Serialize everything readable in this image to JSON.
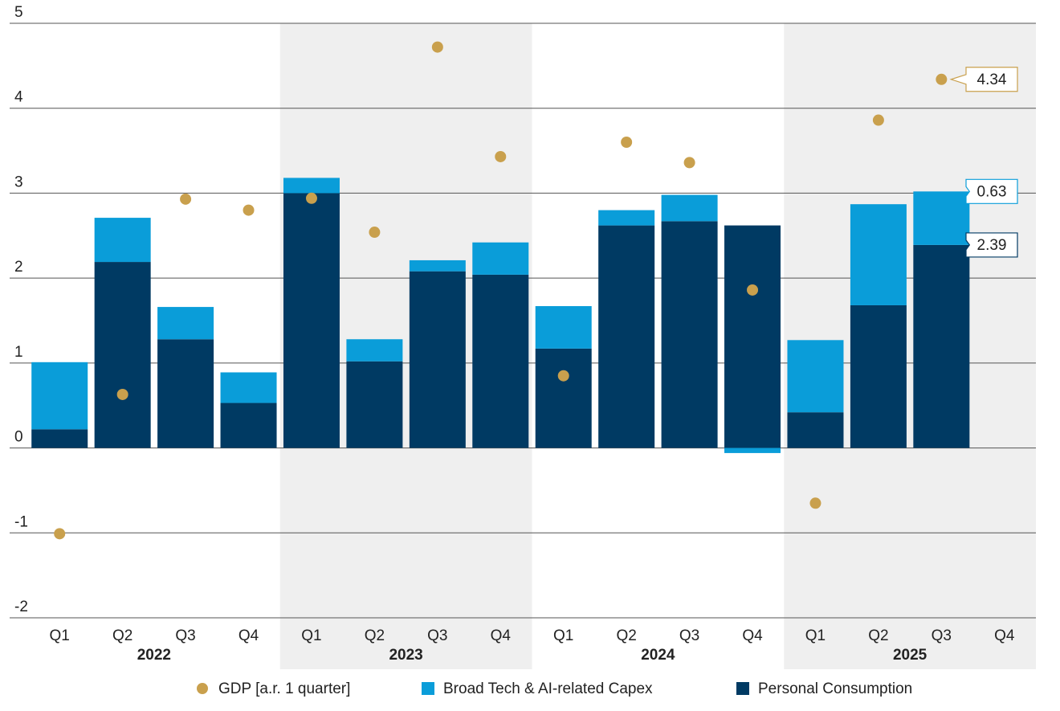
{
  "chart_data": {
    "type": "bar",
    "stacked": true,
    "categories": [
      "Q1",
      "Q2",
      "Q3",
      "Q4",
      "Q1",
      "Q2",
      "Q3",
      "Q4",
      "Q1",
      "Q2",
      "Q3",
      "Q4",
      "Q1",
      "Q2",
      "Q3",
      "Q4"
    ],
    "x_groups": [
      "2022",
      "2023",
      "2024",
      "2025"
    ],
    "series": [
      {
        "name": "GDP [a.r. 1 quarter]",
        "type": "scatter",
        "color": "#c9a04d",
        "values": [
          -1.01,
          0.63,
          2.93,
          2.8,
          2.94,
          2.54,
          4.72,
          3.43,
          0.85,
          3.6,
          3.36,
          1.86,
          -0.65,
          3.86,
          4.34,
          null
        ]
      },
      {
        "name": "Broad Tech & AI-related Capex",
        "type": "bar",
        "color": "#0a9dd9",
        "values": [
          0.79,
          0.52,
          0.38,
          0.36,
          0.18,
          0.26,
          0.13,
          0.38,
          0.5,
          0.18,
          0.31,
          -0.06,
          0.85,
          1.19,
          0.63,
          null
        ]
      },
      {
        "name": "Personal Consumption",
        "type": "bar",
        "color": "#003a63",
        "values": [
          0.22,
          2.19,
          1.28,
          0.53,
          3.0,
          1.02,
          2.08,
          2.04,
          1.17,
          2.62,
          2.67,
          2.62,
          0.42,
          1.68,
          2.39,
          null
        ]
      }
    ],
    "ylim": [
      -2,
      5
    ],
    "yticks": [
      -2,
      -1,
      0,
      1,
      2,
      3,
      4,
      5
    ],
    "grid": true
  }
}
